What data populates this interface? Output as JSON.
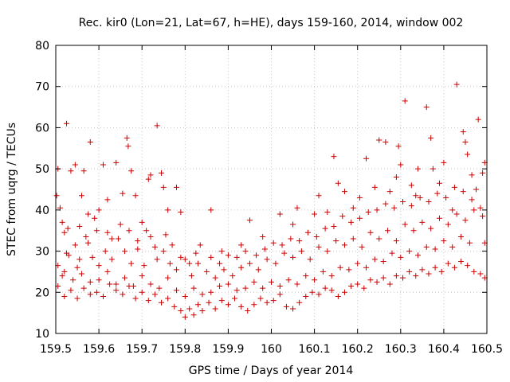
{
  "chart_data": {
    "type": "scatter",
    "title": "Rec. kir0 (Lon=21, Lat=67, h=HE), days 159-160, 2014, window 002",
    "xlabel": "GPS time / Days of year 2014",
    "ylabel": "STEC from uqrg / TECUs",
    "xlim": [
      159.5,
      160.5
    ],
    "ylim": [
      10,
      80
    ],
    "xticks": [
      "159.5",
      "159.6",
      "159.7",
      "159.8",
      "159.9",
      "160",
      "160.1",
      "160.2",
      "160.3",
      "160.4",
      "160.5"
    ],
    "yticks": [
      "10",
      "20",
      "30",
      "40",
      "50",
      "60",
      "70",
      "80"
    ],
    "grid": true,
    "marker": "+",
    "color": "#cc0000",
    "series": [
      {
        "name": "STEC",
        "points": [
          [
            159.502,
            43.5
          ],
          [
            159.505,
            50.0
          ],
          [
            159.51,
            40.5
          ],
          [
            159.515,
            37.0
          ],
          [
            159.52,
            34.5
          ],
          [
            159.525,
            61.0
          ],
          [
            159.528,
            35.5
          ],
          [
            159.535,
            49.5
          ],
          [
            159.545,
            51.0
          ],
          [
            159.55,
            26.0
          ],
          [
            159.56,
            43.5
          ],
          [
            159.565,
            49.5
          ],
          [
            159.575,
            39.0
          ],
          [
            159.58,
            56.5
          ],
          [
            159.59,
            38.0
          ],
          [
            159.6,
            40.0
          ],
          [
            159.61,
            51.0
          ],
          [
            159.62,
            42.5
          ],
          [
            159.63,
            33.0
          ],
          [
            159.64,
            51.5
          ],
          [
            159.655,
            44.0
          ],
          [
            159.665,
            57.5
          ],
          [
            159.668,
            55.5
          ],
          [
            159.675,
            49.5
          ],
          [
            159.685,
            43.5
          ],
          [
            159.7,
            37.0
          ],
          [
            159.715,
            47.5
          ],
          [
            159.72,
            48.5
          ],
          [
            159.735,
            60.5
          ],
          [
            159.745,
            49.0
          ],
          [
            159.75,
            45.5
          ],
          [
            159.76,
            40.0
          ],
          [
            159.78,
            45.5
          ],
          [
            159.79,
            39.5
          ],
          [
            159.825,
            29.5
          ],
          [
            159.86,
            40.0
          ],
          [
            159.885,
            30.0
          ],
          [
            159.93,
            31.5
          ],
          [
            159.95,
            37.5
          ],
          [
            159.98,
            33.5
          ],
          [
            160.02,
            39.0
          ],
          [
            160.05,
            36.5
          ],
          [
            160.06,
            40.5
          ],
          [
            160.1,
            39.0
          ],
          [
            160.11,
            43.5
          ],
          [
            160.13,
            39.5
          ],
          [
            160.145,
            53.0
          ],
          [
            160.155,
            46.5
          ],
          [
            160.17,
            44.5
          ],
          [
            160.19,
            40.5
          ],
          [
            160.205,
            43.0
          ],
          [
            160.22,
            52.5
          ],
          [
            160.24,
            45.5
          ],
          [
            160.25,
            57.0
          ],
          [
            160.265,
            56.5
          ],
          [
            160.275,
            44.5
          ],
          [
            160.29,
            48.0
          ],
          [
            160.295,
            55.5
          ],
          [
            160.3,
            51.0
          ],
          [
            160.31,
            66.5
          ],
          [
            160.325,
            46.0
          ],
          [
            160.335,
            43.5
          ],
          [
            160.34,
            50.0
          ],
          [
            160.36,
            65.0
          ],
          [
            160.37,
            57.5
          ],
          [
            160.375,
            50.0
          ],
          [
            160.39,
            46.5
          ],
          [
            160.4,
            51.5
          ],
          [
            160.42,
            40.0
          ],
          [
            160.43,
            70.5
          ],
          [
            160.445,
            59.0
          ],
          [
            160.45,
            56.5
          ],
          [
            160.455,
            53.5
          ],
          [
            160.465,
            48.5
          ],
          [
            160.475,
            45.0
          ],
          [
            160.48,
            62.0
          ],
          [
            160.49,
            49.0
          ],
          [
            160.495,
            51.5
          ],
          [
            160.495,
            32.0
          ],
          [
            159.505,
            26.5
          ],
          [
            159.515,
            24.0
          ],
          [
            159.53,
            29.0
          ],
          [
            159.545,
            31.5
          ],
          [
            159.555,
            28.0
          ],
          [
            159.57,
            33.5
          ],
          [
            159.585,
            28.5
          ],
          [
            159.6,
            26.5
          ],
          [
            159.615,
            30.0
          ],
          [
            159.63,
            28.0
          ],
          [
            159.645,
            33.0
          ],
          [
            159.66,
            30.0
          ],
          [
            159.675,
            27.0
          ],
          [
            159.69,
            30.5
          ],
          [
            159.705,
            26.5
          ],
          [
            159.72,
            33.5
          ],
          [
            159.735,
            28.0
          ],
          [
            159.75,
            30.0
          ],
          [
            159.765,
            27.0
          ],
          [
            159.78,
            25.5
          ],
          [
            159.8,
            28.0
          ],
          [
            159.815,
            24.0
          ],
          [
            159.83,
            27.0
          ],
          [
            159.85,
            25.0
          ],
          [
            159.87,
            23.5
          ],
          [
            159.89,
            25.5
          ],
          [
            159.91,
            24.0
          ],
          [
            159.93,
            26.0
          ],
          [
            159.95,
            27.0
          ],
          [
            159.97,
            25.5
          ],
          [
            159.99,
            28.0
          ],
          [
            160.01,
            27.0
          ],
          [
            160.03,
            29.5
          ],
          [
            160.05,
            28.5
          ],
          [
            160.07,
            30.0
          ],
          [
            160.09,
            28.0
          ],
          [
            160.11,
            31.0
          ],
          [
            160.13,
            30.0
          ],
          [
            160.15,
            32.5
          ],
          [
            160.17,
            31.5
          ],
          [
            160.19,
            33.0
          ],
          [
            160.21,
            31.0
          ],
          [
            160.23,
            34.5
          ],
          [
            160.25,
            33.0
          ],
          [
            160.27,
            35.0
          ],
          [
            160.29,
            32.5
          ],
          [
            160.31,
            36.5
          ],
          [
            160.33,
            35.0
          ],
          [
            160.35,
            37.0
          ],
          [
            160.37,
            35.5
          ],
          [
            160.39,
            38.0
          ],
          [
            160.41,
            36.5
          ],
          [
            160.43,
            39.0
          ],
          [
            160.45,
            37.5
          ],
          [
            160.47,
            40.0
          ],
          [
            160.49,
            38.5
          ],
          [
            159.505,
            21.5
          ],
          [
            159.52,
            19.0
          ],
          [
            159.535,
            20.5
          ],
          [
            159.55,
            18.5
          ],
          [
            159.565,
            21.0
          ],
          [
            159.58,
            19.5
          ],
          [
            159.595,
            20.0
          ],
          [
            159.61,
            19.0
          ],
          [
            159.625,
            22.0
          ],
          [
            159.64,
            20.5
          ],
          [
            159.655,
            19.5
          ],
          [
            159.67,
            21.5
          ],
          [
            159.685,
            18.5
          ],
          [
            159.7,
            20.0
          ],
          [
            159.715,
            18.0
          ],
          [
            159.73,
            19.5
          ],
          [
            159.745,
            17.5
          ],
          [
            159.76,
            18.5
          ],
          [
            159.775,
            16.5
          ],
          [
            159.79,
            15.5
          ],
          [
            159.8,
            14.0
          ],
          [
            159.81,
            16.0
          ],
          [
            159.82,
            14.5
          ],
          [
            159.83,
            17.0
          ],
          [
            159.84,
            15.5
          ],
          [
            159.855,
            17.5
          ],
          [
            159.87,
            16.0
          ],
          [
            159.885,
            18.0
          ],
          [
            159.9,
            17.0
          ],
          [
            159.915,
            18.5
          ],
          [
            159.93,
            16.5
          ],
          [
            159.945,
            15.5
          ],
          [
            159.96,
            17.0
          ],
          [
            159.975,
            18.5
          ],
          [
            159.99,
            17.5
          ],
          [
            160.005,
            18.0
          ],
          [
            160.02,
            19.5
          ],
          [
            160.035,
            16.5
          ],
          [
            160.05,
            16.0
          ],
          [
            160.065,
            17.5
          ],
          [
            160.08,
            19.0
          ],
          [
            160.095,
            20.0
          ],
          [
            160.11,
            19.5
          ],
          [
            160.125,
            21.0
          ],
          [
            160.14,
            20.5
          ],
          [
            160.155,
            19.0
          ],
          [
            160.17,
            20.0
          ],
          [
            160.185,
            21.5
          ],
          [
            160.2,
            22.0
          ],
          [
            160.215,
            21.0
          ],
          [
            160.23,
            23.0
          ],
          [
            160.245,
            22.5
          ],
          [
            160.26,
            23.5
          ],
          [
            160.275,
            22.0
          ],
          [
            160.29,
            24.0
          ],
          [
            160.305,
            23.5
          ],
          [
            160.32,
            25.0
          ],
          [
            160.335,
            24.0
          ],
          [
            160.35,
            25.5
          ],
          [
            160.365,
            24.5
          ],
          [
            160.38,
            26.0
          ],
          [
            160.395,
            25.0
          ],
          [
            160.41,
            27.0
          ],
          [
            160.425,
            26.0
          ],
          [
            160.44,
            27.5
          ],
          [
            160.455,
            26.5
          ],
          [
            160.47,
            25.0
          ],
          [
            160.485,
            24.5
          ],
          [
            160.495,
            23.5
          ],
          [
            159.52,
            25.0
          ],
          [
            159.54,
            23.0
          ],
          [
            159.56,
            24.5
          ],
          [
            159.58,
            22.5
          ],
          [
            159.6,
            23.0
          ],
          [
            159.62,
            25.0
          ],
          [
            159.64,
            22.0
          ],
          [
            159.66,
            23.5
          ],
          [
            159.68,
            21.5
          ],
          [
            159.7,
            24.0
          ],
          [
            159.72,
            22.0
          ],
          [
            159.74,
            21.0
          ],
          [
            159.76,
            23.5
          ],
          [
            159.78,
            20.5
          ],
          [
            159.8,
            19.0
          ],
          [
            159.82,
            21.0
          ],
          [
            159.84,
            19.5
          ],
          [
            159.86,
            20.0
          ],
          [
            159.88,
            21.5
          ],
          [
            159.9,
            22.0
          ],
          [
            159.92,
            20.5
          ],
          [
            159.94,
            21.0
          ],
          [
            159.96,
            22.5
          ],
          [
            159.98,
            21.0
          ],
          [
            160.0,
            22.5
          ],
          [
            160.02,
            21.5
          ],
          [
            160.04,
            23.0
          ],
          [
            160.06,
            22.0
          ],
          [
            160.08,
            24.0
          ],
          [
            160.1,
            23.0
          ],
          [
            160.12,
            25.0
          ],
          [
            160.14,
            24.0
          ],
          [
            160.16,
            26.0
          ],
          [
            160.18,
            25.5
          ],
          [
            160.2,
            27.0
          ],
          [
            160.22,
            26.0
          ],
          [
            160.24,
            28.0
          ],
          [
            160.26,
            27.5
          ],
          [
            160.28,
            29.5
          ],
          [
            160.3,
            28.5
          ],
          [
            160.32,
            30.0
          ],
          [
            160.34,
            29.0
          ],
          [
            160.36,
            31.0
          ],
          [
            160.38,
            30.5
          ],
          [
            160.4,
            32.5
          ],
          [
            160.42,
            31.0
          ],
          [
            160.44,
            33.5
          ],
          [
            160.46,
            32.0
          ],
          [
            159.525,
            29.5
          ],
          [
            159.555,
            36.0
          ],
          [
            159.575,
            32.0
          ],
          [
            159.595,
            35.0
          ],
          [
            159.62,
            34.5
          ],
          [
            159.65,
            36.5
          ],
          [
            159.67,
            35.0
          ],
          [
            159.69,
            32.5
          ],
          [
            159.71,
            35.0
          ],
          [
            159.73,
            31.0
          ],
          [
            159.755,
            34.0
          ],
          [
            159.77,
            31.5
          ],
          [
            159.79,
            28.5
          ],
          [
            159.81,
            27.0
          ],
          [
            159.835,
            31.5
          ],
          [
            159.86,
            28.5
          ],
          [
            159.88,
            27.0
          ],
          [
            159.9,
            29.0
          ],
          [
            159.92,
            28.5
          ],
          [
            159.94,
            30.0
          ],
          [
            159.965,
            29.0
          ],
          [
            159.985,
            30.5
          ],
          [
            160.005,
            32.0
          ],
          [
            160.025,
            31.5
          ],
          [
            160.045,
            33.0
          ],
          [
            160.065,
            32.5
          ],
          [
            160.085,
            34.5
          ],
          [
            160.105,
            33.5
          ],
          [
            160.125,
            35.5
          ],
          [
            160.145,
            36.0
          ],
          [
            160.165,
            38.5
          ],
          [
            160.185,
            37.0
          ],
          [
            160.205,
            38.0
          ],
          [
            160.225,
            39.5
          ],
          [
            160.245,
            40.0
          ],
          [
            160.265,
            41.5
          ],
          [
            160.285,
            40.5
          ],
          [
            160.305,
            42.0
          ],
          [
            160.325,
            41.0
          ],
          [
            160.345,
            43.0
          ],
          [
            160.365,
            42.0
          ],
          [
            160.385,
            44.0
          ],
          [
            160.405,
            43.0
          ],
          [
            160.425,
            45.5
          ],
          [
            160.445,
            44.5
          ],
          [
            160.465,
            42.5
          ],
          [
            160.485,
            40.5
          ]
        ]
      }
    ]
  }
}
